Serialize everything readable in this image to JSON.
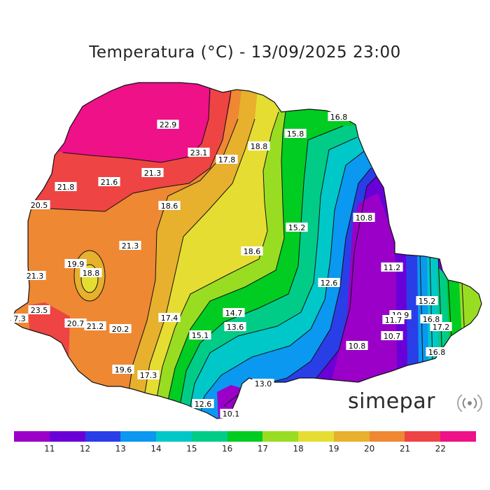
{
  "title": "Temperatura (°C) - 13/09/2025 23:00",
  "logo_text": "simepar",
  "logo_icon": "signal-waves-icon",
  "legend": {
    "colors": [
      "#9a00c8",
      "#6a00d8",
      "#2a3ee8",
      "#0a98f0",
      "#00c8c8",
      "#00cc88",
      "#00cc22",
      "#99dd22",
      "#e6dd33",
      "#e7b02d",
      "#ee8833",
      "#ee4444",
      "#ee1188"
    ],
    "ticks": [
      "11",
      "12",
      "13",
      "14",
      "15",
      "16",
      "17",
      "18",
      "19",
      "20",
      "21",
      "22"
    ]
  },
  "labels": [
    {
      "text": "22.9"
    },
    {
      "text": "16.8"
    },
    {
      "text": "15.8"
    },
    {
      "text": "23.1"
    },
    {
      "text": "18.8"
    },
    {
      "text": "17.8"
    },
    {
      "text": "21.8"
    },
    {
      "text": "21.6"
    },
    {
      "text": "21.3"
    },
    {
      "text": "20.5"
    },
    {
      "text": "18.6"
    },
    {
      "text": "15.2"
    },
    {
      "text": "10.8"
    },
    {
      "text": "21.3"
    },
    {
      "text": "18.6"
    },
    {
      "text": "19.9"
    },
    {
      "text": "18.8"
    },
    {
      "text": "21.3"
    },
    {
      "text": "11.2"
    },
    {
      "text": "12.6"
    },
    {
      "text": "23.5"
    },
    {
      "text": "7.3"
    },
    {
      "text": "20.7"
    },
    {
      "text": "21.2"
    },
    {
      "text": "20.2"
    },
    {
      "text": "17.4"
    },
    {
      "text": "14.7"
    },
    {
      "text": "13.6"
    },
    {
      "text": "15.1"
    },
    {
      "text": "15.2"
    },
    {
      "text": "10.9"
    },
    {
      "text": "11.7"
    },
    {
      "text": "16.8"
    },
    {
      "text": "17.2"
    },
    {
      "text": "10.7"
    },
    {
      "text": "10.8"
    },
    {
      "text": "16.8"
    },
    {
      "text": "19.6"
    },
    {
      "text": "17.3"
    },
    {
      "text": "13.0"
    },
    {
      "text": "12.6"
    },
    {
      "text": "10.1"
    }
  ]
}
